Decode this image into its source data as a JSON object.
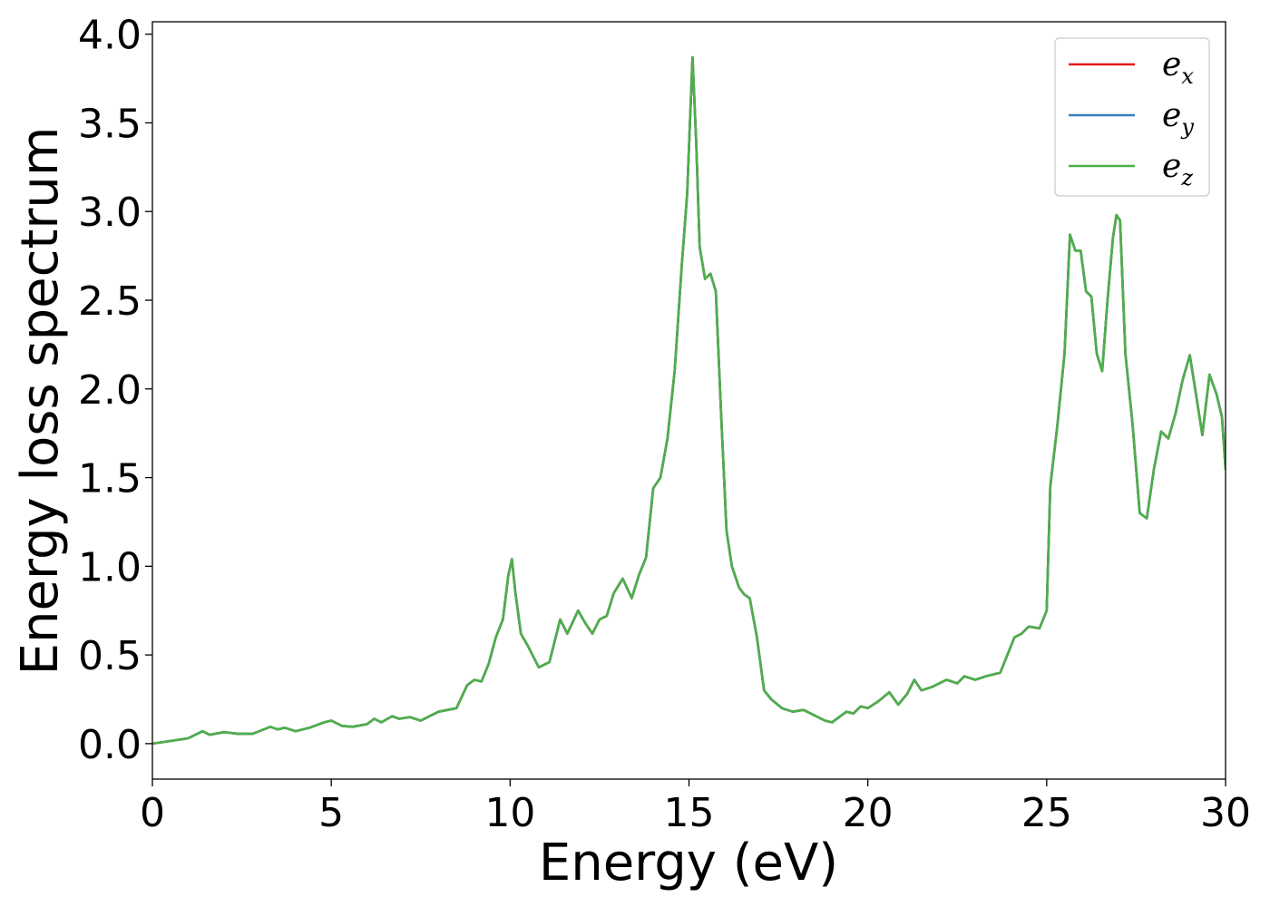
{
  "chart_data": {
    "type": "line",
    "xlabel": "Energy (eV)",
    "ylabel": "Energy loss spectrum",
    "xlim": [
      0,
      30
    ],
    "ylim": [
      -0.2,
      4.07
    ],
    "xticks": [
      0,
      5,
      10,
      15,
      20,
      25,
      30
    ],
    "xtick_labels": [
      "0",
      "5",
      "10",
      "15",
      "20",
      "25",
      "30"
    ],
    "yticks": [
      0.0,
      0.5,
      1.0,
      1.5,
      2.0,
      2.5,
      3.0,
      3.5,
      4.0
    ],
    "ytick_labels": [
      "0.0",
      "0.5",
      "1.0",
      "1.5",
      "2.0",
      "2.5",
      "3.0",
      "3.5",
      "4.0"
    ],
    "grid": false,
    "legend_position": "top-right",
    "x": [
      0,
      0.5,
      1.0,
      1.4,
      1.6,
      2.0,
      2.4,
      2.8,
      3.3,
      3.5,
      3.7,
      4.0,
      4.4,
      4.8,
      5.0,
      5.3,
      5.6,
      6.0,
      6.2,
      6.4,
      6.7,
      6.9,
      7.2,
      7.5,
      7.8,
      8.0,
      8.5,
      8.8,
      9.0,
      9.2,
      9.4,
      9.6,
      9.8,
      9.95,
      10.05,
      10.15,
      10.3,
      10.5,
      10.8,
      11.1,
      11.4,
      11.6,
      11.9,
      12.1,
      12.3,
      12.5,
      12.7,
      12.9,
      13.15,
      13.4,
      13.6,
      13.8,
      14.0,
      14.2,
      14.4,
      14.6,
      14.8,
      14.95,
      15.1,
      15.2,
      15.3,
      15.45,
      15.6,
      15.75,
      15.9,
      16.05,
      16.2,
      16.4,
      16.55,
      16.7,
      16.9,
      17.1,
      17.3,
      17.6,
      17.9,
      18.2,
      18.5,
      18.8,
      19.0,
      19.2,
      19.4,
      19.6,
      19.8,
      20.0,
      20.3,
      20.6,
      20.85,
      21.1,
      21.3,
      21.5,
      21.8,
      22.0,
      22.2,
      22.5,
      22.7,
      23.0,
      23.3,
      23.5,
      23.7,
      23.9,
      24.1,
      24.3,
      24.5,
      24.8,
      25.0,
      25.1,
      25.3,
      25.5,
      25.65,
      25.8,
      25.95,
      26.1,
      26.25,
      26.4,
      26.55,
      26.7,
      26.85,
      26.95,
      27.05,
      27.2,
      27.4,
      27.6,
      27.8,
      28.0,
      28.2,
      28.4,
      28.6,
      28.8,
      29.0,
      29.15,
      29.35,
      29.55,
      29.75,
      29.9,
      30.0
    ],
    "series": [
      {
        "name": "e_x",
        "label_base": "e",
        "label_sub": "x",
        "color": "#e41a1c",
        "values": [
          0.0,
          0.015,
          0.03,
          0.07,
          0.05,
          0.065,
          0.055,
          0.055,
          0.095,
          0.08,
          0.09,
          0.07,
          0.09,
          0.12,
          0.13,
          0.1,
          0.095,
          0.11,
          0.14,
          0.12,
          0.155,
          0.14,
          0.15,
          0.13,
          0.16,
          0.18,
          0.2,
          0.33,
          0.36,
          0.35,
          0.45,
          0.6,
          0.7,
          0.95,
          1.04,
          0.85,
          0.62,
          0.55,
          0.43,
          0.46,
          0.7,
          0.62,
          0.75,
          0.68,
          0.62,
          0.7,
          0.72,
          0.85,
          0.93,
          0.82,
          0.95,
          1.05,
          1.44,
          1.5,
          1.72,
          2.1,
          2.7,
          3.1,
          3.87,
          3.4,
          2.8,
          2.62,
          2.65,
          2.55,
          1.85,
          1.2,
          1.0,
          0.88,
          0.84,
          0.82,
          0.6,
          0.3,
          0.25,
          0.2,
          0.18,
          0.19,
          0.16,
          0.13,
          0.12,
          0.15,
          0.18,
          0.17,
          0.21,
          0.2,
          0.24,
          0.29,
          0.22,
          0.28,
          0.36,
          0.3,
          0.32,
          0.34,
          0.36,
          0.34,
          0.38,
          0.36,
          0.38,
          0.39,
          0.4,
          0.5,
          0.6,
          0.62,
          0.66,
          0.65,
          0.75,
          1.45,
          1.8,
          2.2,
          2.87,
          2.78,
          2.78,
          2.55,
          2.52,
          2.2,
          2.1,
          2.5,
          2.85,
          2.98,
          2.95,
          2.2,
          1.8,
          1.3,
          1.27,
          1.55,
          1.76,
          1.72,
          1.86,
          2.05,
          2.19,
          2.0,
          1.74,
          2.08,
          1.97,
          1.84,
          1.55
        ]
      },
      {
        "name": "e_y",
        "label_base": "e",
        "label_sub": "y",
        "color": "#377eb8",
        "values": [
          0.0,
          0.015,
          0.03,
          0.07,
          0.05,
          0.065,
          0.055,
          0.055,
          0.095,
          0.08,
          0.09,
          0.07,
          0.09,
          0.12,
          0.13,
          0.1,
          0.095,
          0.11,
          0.14,
          0.12,
          0.155,
          0.14,
          0.15,
          0.13,
          0.16,
          0.18,
          0.2,
          0.33,
          0.36,
          0.35,
          0.45,
          0.6,
          0.7,
          0.95,
          1.04,
          0.85,
          0.62,
          0.55,
          0.43,
          0.46,
          0.7,
          0.62,
          0.75,
          0.68,
          0.62,
          0.7,
          0.72,
          0.85,
          0.93,
          0.82,
          0.95,
          1.05,
          1.44,
          1.5,
          1.72,
          2.1,
          2.7,
          3.1,
          3.87,
          3.4,
          2.8,
          2.62,
          2.65,
          2.55,
          1.85,
          1.2,
          1.0,
          0.88,
          0.84,
          0.82,
          0.6,
          0.3,
          0.25,
          0.2,
          0.18,
          0.19,
          0.16,
          0.13,
          0.12,
          0.15,
          0.18,
          0.17,
          0.21,
          0.2,
          0.24,
          0.29,
          0.22,
          0.28,
          0.36,
          0.3,
          0.32,
          0.34,
          0.36,
          0.34,
          0.38,
          0.36,
          0.38,
          0.39,
          0.4,
          0.5,
          0.6,
          0.62,
          0.66,
          0.65,
          0.75,
          1.45,
          1.8,
          2.2,
          2.87,
          2.78,
          2.78,
          2.55,
          2.52,
          2.2,
          2.1,
          2.5,
          2.85,
          2.98,
          2.95,
          2.2,
          1.8,
          1.3,
          1.27,
          1.55,
          1.76,
          1.72,
          1.86,
          2.05,
          2.19,
          2.0,
          1.74,
          2.08,
          1.97,
          1.84,
          1.55
        ]
      },
      {
        "name": "e_z",
        "label_base": "e",
        "label_sub": "z",
        "color": "#4daf4a",
        "values": [
          0.0,
          0.015,
          0.03,
          0.07,
          0.05,
          0.065,
          0.055,
          0.055,
          0.095,
          0.08,
          0.09,
          0.07,
          0.09,
          0.12,
          0.13,
          0.1,
          0.095,
          0.11,
          0.14,
          0.12,
          0.155,
          0.14,
          0.15,
          0.13,
          0.16,
          0.18,
          0.2,
          0.33,
          0.36,
          0.35,
          0.45,
          0.6,
          0.7,
          0.95,
          1.04,
          0.85,
          0.62,
          0.55,
          0.43,
          0.46,
          0.7,
          0.62,
          0.75,
          0.68,
          0.62,
          0.7,
          0.72,
          0.85,
          0.93,
          0.82,
          0.95,
          1.05,
          1.44,
          1.5,
          1.72,
          2.1,
          2.7,
          3.1,
          3.87,
          3.4,
          2.8,
          2.62,
          2.65,
          2.55,
          1.85,
          1.2,
          1.0,
          0.88,
          0.84,
          0.82,
          0.6,
          0.3,
          0.25,
          0.2,
          0.18,
          0.19,
          0.16,
          0.13,
          0.12,
          0.15,
          0.18,
          0.17,
          0.21,
          0.2,
          0.24,
          0.29,
          0.22,
          0.28,
          0.36,
          0.3,
          0.32,
          0.34,
          0.36,
          0.34,
          0.38,
          0.36,
          0.38,
          0.39,
          0.4,
          0.5,
          0.6,
          0.62,
          0.66,
          0.65,
          0.75,
          1.45,
          1.8,
          2.2,
          2.87,
          2.78,
          2.78,
          2.55,
          2.52,
          2.2,
          2.1,
          2.5,
          2.85,
          2.98,
          2.95,
          2.2,
          1.8,
          1.3,
          1.27,
          1.55,
          1.76,
          1.72,
          1.86,
          2.05,
          2.19,
          2.0,
          1.74,
          2.08,
          1.97,
          1.84,
          1.55
        ]
      }
    ]
  }
}
